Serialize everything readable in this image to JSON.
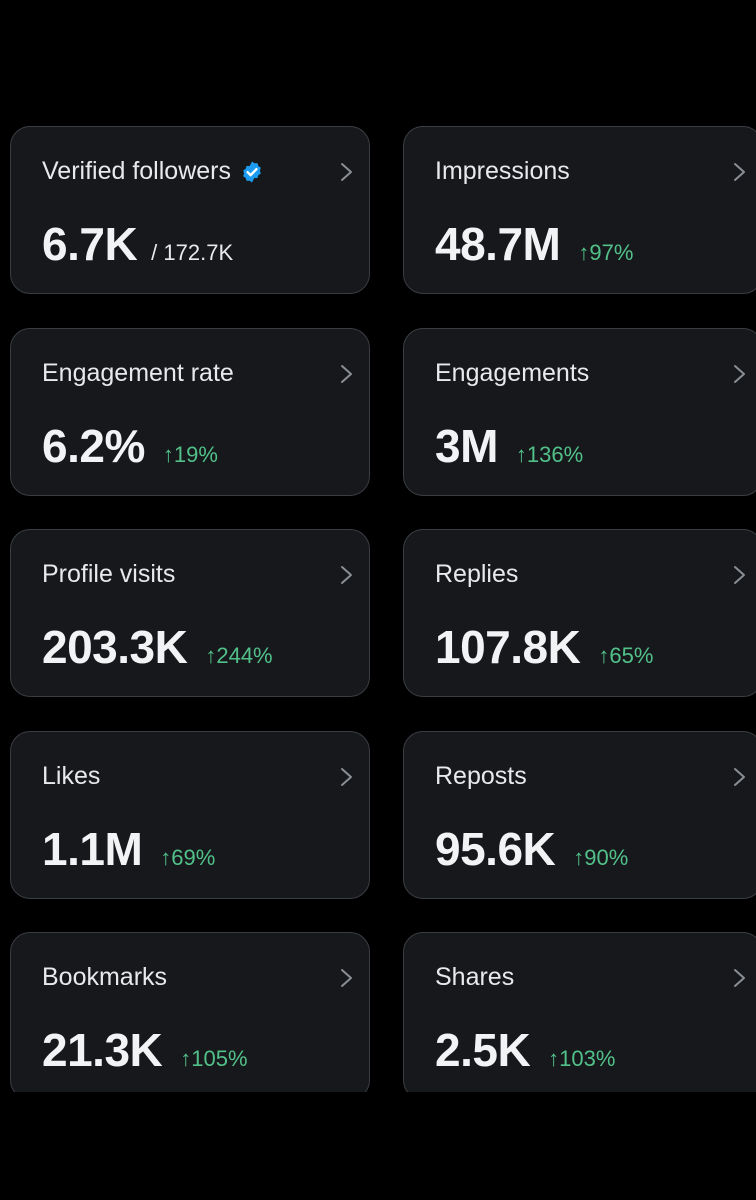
{
  "theme": {
    "background": "#000000",
    "card_background": "#16181c",
    "card_border": "#3a3d42",
    "text_primary": "#e7e9ea",
    "positive_change": "#52c089",
    "verified_badge": "#1d9bf0"
  },
  "metrics": [
    {
      "label": "Verified followers",
      "value": "6.7K",
      "total": "/ 172.7K",
      "badge_icon": "verified-badge-icon",
      "chevron_icon": "chevron-right-icon"
    },
    {
      "label": "Impressions",
      "value": "48.7M",
      "change": "↑97%",
      "chevron_icon": "chevron-right-icon"
    },
    {
      "label": "Engagement rate",
      "value": "6.2%",
      "change": "↑19%",
      "chevron_icon": "chevron-right-icon"
    },
    {
      "label": "Engagements",
      "value": "3M",
      "change": "↑136%",
      "chevron_icon": "chevron-right-icon"
    },
    {
      "label": "Profile visits",
      "value": "203.3K",
      "change": "↑244%",
      "chevron_icon": "chevron-right-icon"
    },
    {
      "label": "Replies",
      "value": "107.8K",
      "change": "↑65%",
      "chevron_icon": "chevron-right-icon"
    },
    {
      "label": "Likes",
      "value": "1.1M",
      "change": "↑69%",
      "chevron_icon": "chevron-right-icon"
    },
    {
      "label": "Reposts",
      "value": "95.6K",
      "change": "↑90%",
      "chevron_icon": "chevron-right-icon"
    },
    {
      "label": "Bookmarks",
      "value": "21.3K",
      "change": "↑105%",
      "chevron_icon": "chevron-right-icon"
    },
    {
      "label": "Shares",
      "value": "2.5K",
      "change": "↑103%",
      "chevron_icon": "chevron-right-icon"
    }
  ]
}
